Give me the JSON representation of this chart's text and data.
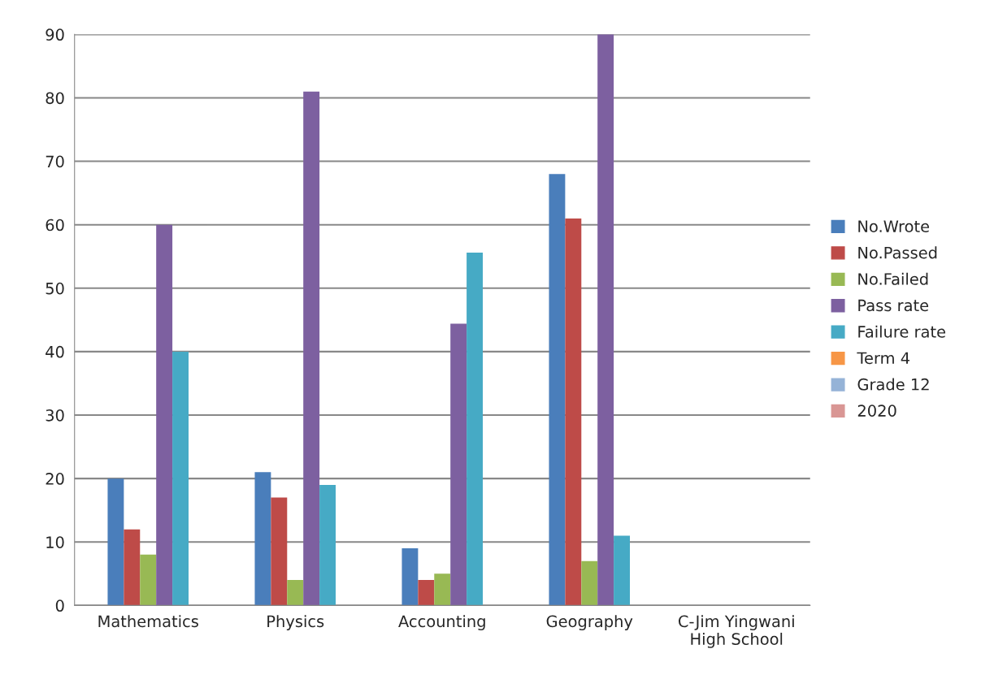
{
  "chart_data": {
    "type": "bar",
    "categories": [
      "Mathematics",
      "Physics",
      "Accounting",
      "Geography",
      "C-Jim Yingwani High School"
    ],
    "series": [
      {
        "name": "No.Wrote",
        "color": "#4a7ebb",
        "values": [
          20,
          21,
          9,
          68,
          null
        ]
      },
      {
        "name": "No.Passed",
        "color": "#be4b48",
        "values": [
          12,
          17,
          4,
          61,
          null
        ]
      },
      {
        "name": "No.Failed",
        "color": "#98b954",
        "values": [
          8,
          4,
          5,
          7,
          0
        ]
      },
      {
        "name": "Pass rate",
        "color": "#7d60a0",
        "values": [
          60,
          81,
          44.4,
          90,
          null
        ]
      },
      {
        "name": "Failure rate",
        "color": "#46aac5",
        "values": [
          40,
          19,
          55.6,
          11,
          null
        ]
      },
      {
        "name": "Term 4",
        "color": "#f79646",
        "values": [
          null,
          null,
          null,
          null,
          null
        ]
      },
      {
        "name": "Grade 12",
        "color": "#95b3d7",
        "values": [
          null,
          null,
          null,
          null,
          null
        ]
      },
      {
        "name": "2020",
        "color": "#d99694",
        "values": [
          null,
          null,
          null,
          null,
          null
        ]
      }
    ],
    "ylim": [
      0,
      90
    ],
    "yticks": [
      0,
      10,
      20,
      30,
      40,
      50,
      60,
      70,
      80,
      90
    ],
    "grid": "y",
    "legend": "right"
  }
}
